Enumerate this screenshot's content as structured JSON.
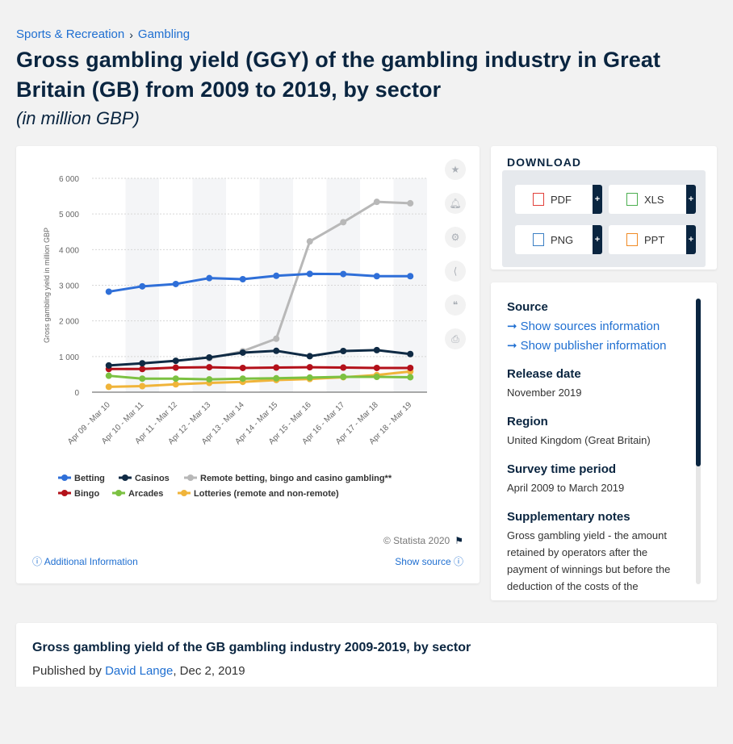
{
  "breadcrumb": {
    "items": [
      "Sports & Recreation",
      "Gambling"
    ],
    "separator": "›"
  },
  "page": {
    "title": "Gross gambling yield (GGY) of the gambling industry in Great Britain (GB) from 2009 to 2019, by sector",
    "subtitle": "(in million GBP)"
  },
  "tools": [
    "star-icon",
    "bell-icon",
    "gear-icon",
    "share-icon",
    "quote-icon",
    "print-icon"
  ],
  "download": {
    "title": "DOWNLOAD",
    "buttons": [
      {
        "label": "PDF",
        "icon": "pdf-icon",
        "color": "#e2403a"
      },
      {
        "label": "XLS",
        "icon": "xls-icon",
        "color": "#4caf50"
      },
      {
        "label": "PNG",
        "icon": "png-icon",
        "color": "#3b7fc4"
      },
      {
        "label": "PPT",
        "icon": "ppt-icon",
        "color": "#f08a24"
      }
    ],
    "plus": "+"
  },
  "info": {
    "source_heading": "Source",
    "show_sources": "Show sources information",
    "show_publisher": "Show publisher information",
    "release_heading": "Release date",
    "release_value": "November 2019",
    "region_heading": "Region",
    "region_value": "United Kingdom (Great Britain)",
    "survey_heading": "Survey time period",
    "survey_value": "April 2009 to March 2019",
    "notes_heading": "Supplementary notes",
    "notes_value": "Gross gambling yield - the amount retained by operators after the payment of winnings but before the deduction of the costs of the"
  },
  "chart_footer": {
    "copyright": "© Statista 2020",
    "additional_info": "Additional Information",
    "show_source": "Show source"
  },
  "bottom": {
    "title": "Gross gambling yield of the GB gambling industry 2009-2019, by sector",
    "published_by": "Published by",
    "author": "David Lange",
    "date": ", Dec 2, 2019"
  },
  "chart_data": {
    "type": "line",
    "ylabel": "Gross gambling yield in million GBP",
    "ylim": [
      0,
      6000
    ],
    "yticks": [
      0,
      1000,
      2000,
      3000,
      4000,
      5000,
      6000
    ],
    "ytick_labels": [
      "0",
      "1 000",
      "2 000",
      "3 000",
      "4 000",
      "5 000",
      "6 000"
    ],
    "categories": [
      "Apr 09 - Mar 10",
      "Apr 10 - Mar 11",
      "Apr 11 - Mar 12",
      "Apr 12 - Mar 13",
      "Apr 13 - Mar 14",
      "Apr 14 - Mar 15",
      "Apr 15 - Mar 16",
      "Apr 16 - Mar 17",
      "Apr 17 - Mar 18",
      "Apr 18 - Mar 19"
    ],
    "grid": true,
    "legend_position": "bottom",
    "series": [
      {
        "name": "Betting",
        "color": "#2f6fd8",
        "values": [
          2820,
          2970,
          3035,
          3200,
          3170,
          3265,
          3320,
          3315,
          3255,
          3255
        ]
      },
      {
        "name": "Casinos",
        "color": "#0f2a44",
        "values": [
          750,
          810,
          880,
          975,
          1110,
          1160,
          1010,
          1155,
          1180,
          1070
        ]
      },
      {
        "name": "Remote betting, bingo and casino gambling**",
        "color": "#b8b8b8",
        "values": [
          null,
          null,
          null,
          950,
          1150,
          1500,
          4230,
          4770,
          5340,
          5300
        ]
      },
      {
        "name": "Bingo",
        "color": "#b3111a",
        "values": [
          650,
          650,
          690,
          700,
          680,
          690,
          700,
          690,
          680,
          680
        ]
      },
      {
        "name": "Arcades",
        "color": "#7cc142",
        "values": [
          460,
          380,
          380,
          360,
          380,
          390,
          410,
          430,
          430,
          420
        ]
      },
      {
        "name": "Lotteries (remote and non-remote)",
        "color": "#f0b43a",
        "values": [
          150,
          170,
          220,
          260,
          290,
          340,
          370,
          420,
          480,
          580
        ]
      }
    ]
  }
}
